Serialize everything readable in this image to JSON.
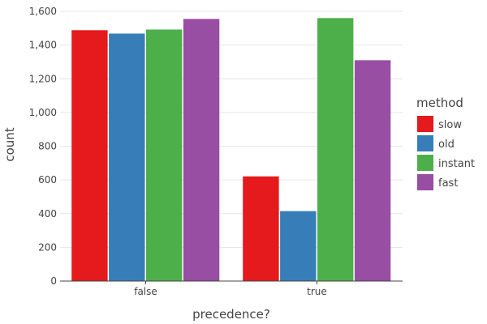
{
  "chart_data": {
    "type": "bar",
    "title": "",
    "xlabel": "precedence?",
    "ylabel": "count",
    "categories": [
      "false",
      "true"
    ],
    "ylim": [
      0,
      1600
    ],
    "yticks": [
      0,
      200,
      400,
      600,
      800,
      1000,
      1200,
      1400,
      1600
    ],
    "ytick_labels": [
      "0",
      "200",
      "400",
      "600",
      "800",
      "1,000",
      "1,200",
      "1,400",
      "1,600"
    ],
    "grid": true,
    "legend": {
      "title": "method",
      "position": "right"
    },
    "series": [
      {
        "name": "slow",
        "color": "#e41a1c",
        "values": [
          1488,
          621
        ]
      },
      {
        "name": "old",
        "color": "#377eb8",
        "values": [
          1468,
          415
        ]
      },
      {
        "name": "instant",
        "color": "#4daf4a",
        "values": [
          1492,
          1560
        ]
      },
      {
        "name": "fast",
        "color": "#984ea3",
        "values": [
          1555,
          1310
        ]
      }
    ]
  }
}
